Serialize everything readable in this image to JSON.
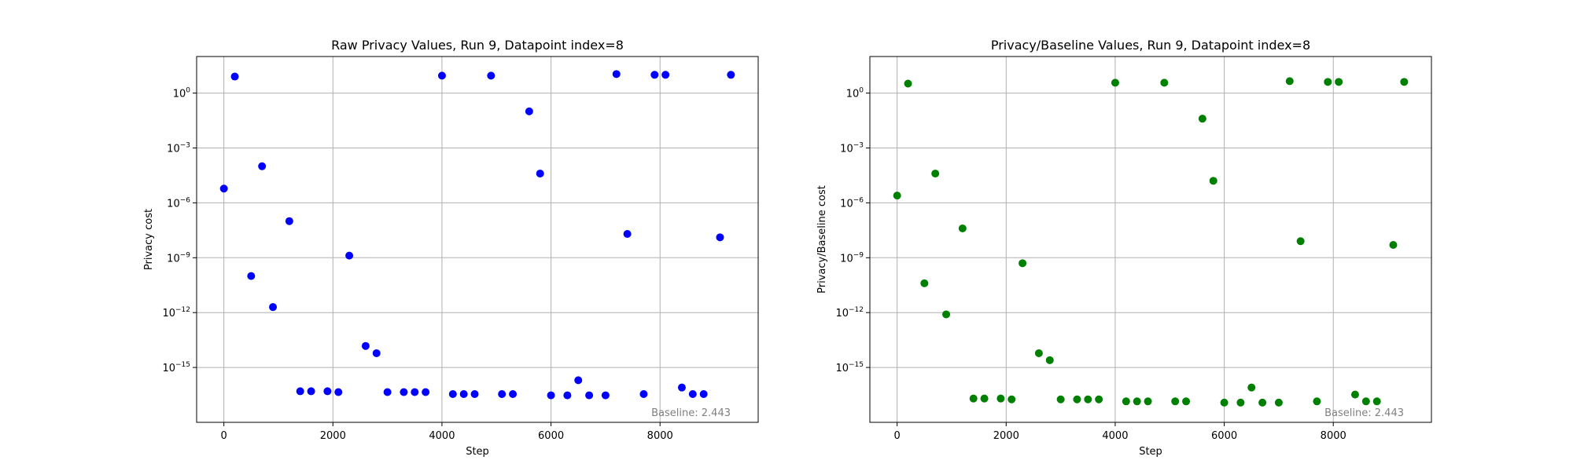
{
  "chart_data": [
    {
      "type": "scatter",
      "title": "Raw Privacy Values, Run 9, Datapoint index=8",
      "xlabel": "Step",
      "ylabel": "Privacy cost",
      "yscale": "log",
      "xlim": [
        -500,
        9800
      ],
      "ylim": [
        1e-18,
        100.0
      ],
      "xticks": [
        0,
        2000,
        4000,
        6000,
        8000
      ],
      "xtick_labels": [
        "0",
        "2000",
        "4000",
        "6000",
        "8000"
      ],
      "yticks": [
        1e-15,
        1e-12,
        1e-09,
        1e-06,
        0.001,
        1
      ],
      "ytick_labels": [
        "10^-15",
        "10^-12",
        "10^-9",
        "10^-6",
        "10^-3",
        "10^0"
      ],
      "grid": true,
      "color": "#0000ff",
      "annotation": "Baseline: 2.443",
      "x": [
        0,
        200,
        500,
        700,
        900,
        1200,
        1400,
        1600,
        1900,
        2100,
        2300,
        2600,
        2800,
        3000,
        3300,
        3500,
        3700,
        4000,
        4200,
        4400,
        4600,
        4900,
        5100,
        5300,
        5600,
        5800,
        6000,
        6300,
        6500,
        6700,
        7000,
        7200,
        7400,
        7700,
        7900,
        8100,
        8400,
        8600,
        8800,
        9100,
        9300
      ],
      "y": [
        6e-06,
        8,
        1e-10,
        0.0001,
        2e-12,
        1e-07,
        5e-17,
        5e-17,
        5e-17,
        4.5e-17,
        1.3e-09,
        1.5e-14,
        6e-15,
        4.5e-17,
        4.5e-17,
        4.5e-17,
        4.5e-17,
        9,
        3.5e-17,
        3.5e-17,
        3.5e-17,
        9,
        3.5e-17,
        3.5e-17,
        0.1,
        4e-05,
        3e-17,
        3e-17,
        2e-16,
        3e-17,
        3e-17,
        11,
        2e-08,
        3.5e-17,
        10,
        10,
        8e-17,
        3.5e-17,
        3.5e-17,
        1.3e-08,
        10
      ]
    },
    {
      "type": "scatter",
      "title": "Privacy/Baseline Values, Run 9, Datapoint index=8",
      "xlabel": "Step",
      "ylabel": "Privacy/Baseline cost",
      "yscale": "log",
      "xlim": [
        -500,
        9800
      ],
      "ylim": [
        1e-18,
        100.0
      ],
      "xticks": [
        0,
        2000,
        4000,
        6000,
        8000
      ],
      "xtick_labels": [
        "0",
        "2000",
        "4000",
        "6000",
        "8000"
      ],
      "yticks": [
        1e-15,
        1e-12,
        1e-09,
        1e-06,
        0.001,
        1
      ],
      "ytick_labels": [
        "10^-15",
        "10^-12",
        "10^-9",
        "10^-6",
        "10^-3",
        "10^0"
      ],
      "grid": true,
      "color": "#008000",
      "annotation": "Baseline: 2.443",
      "x": [
        0,
        200,
        500,
        700,
        900,
        1200,
        1400,
        1600,
        1900,
        2100,
        2300,
        2600,
        2800,
        3000,
        3300,
        3500,
        3700,
        4000,
        4200,
        4400,
        4600,
        4900,
        5100,
        5300,
        5600,
        5800,
        6000,
        6300,
        6500,
        6700,
        7000,
        7200,
        7400,
        7700,
        7900,
        8100,
        8400,
        8600,
        8800,
        9100,
        9300
      ],
      "y": [
        2.5e-06,
        3.3,
        4e-11,
        4e-05,
        8e-13,
        4e-08,
        2e-17,
        2e-17,
        2e-17,
        1.8e-17,
        5e-10,
        6e-15,
        2.5e-15,
        1.8e-17,
        1.8e-17,
        1.8e-17,
        1.8e-17,
        3.7,
        1.4e-17,
        1.4e-17,
        1.4e-17,
        3.7,
        1.4e-17,
        1.4e-17,
        0.04,
        1.6e-05,
        1.2e-17,
        1.2e-17,
        8e-17,
        1.2e-17,
        1.2e-17,
        4.5,
        8e-09,
        1.4e-17,
        4.1,
        4.1,
        3.3e-17,
        1.4e-17,
        1.4e-17,
        5e-09,
        4.1
      ]
    }
  ]
}
